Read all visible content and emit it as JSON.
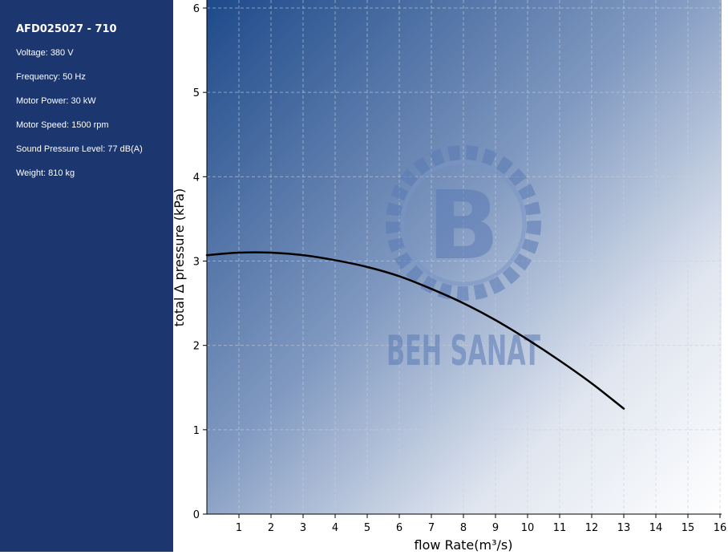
{
  "sidebar": {
    "model": "AFD025027 - 710",
    "specs": [
      "Voltage: 380 V",
      "Frequency: 50 Hz",
      "Motor Power: 30 kW",
      "Motor Speed: 1500 rpm",
      "Sound Pressure Level: 77 dB(A)",
      "Weight: 810 kg"
    ]
  },
  "watermark": {
    "text": "BEH SANAT",
    "logo_letter": "B"
  },
  "colors": {
    "sidebar_bg": "#1c3670",
    "plot_dark": "#1e4a8a",
    "plot_light": "#ffffff",
    "curve": "#000000",
    "watermark": "#5a7ab5"
  },
  "chart_data": {
    "type": "line",
    "title": "",
    "xlabel": "flow Rate(m³/s)",
    "ylabel": "total Δ pressure (kPa)",
    "xlim": [
      0,
      16
    ],
    "ylim": [
      0,
      6
    ],
    "xticks": [
      1,
      2,
      3,
      4,
      5,
      6,
      7,
      8,
      9,
      10,
      11,
      12,
      13,
      14,
      15,
      16
    ],
    "yticks": [
      0,
      1,
      2,
      3,
      4,
      5,
      6
    ],
    "grid": true,
    "series": [
      {
        "x": [
          0,
          1,
          2,
          3,
          4,
          5,
          6,
          7,
          8,
          9,
          10,
          11,
          12,
          13
        ],
        "y": [
          3.07,
          3.1,
          3.1,
          3.07,
          3.01,
          2.93,
          2.82,
          2.67,
          2.5,
          2.3,
          2.07,
          1.82,
          1.55,
          1.25
        ]
      }
    ]
  }
}
